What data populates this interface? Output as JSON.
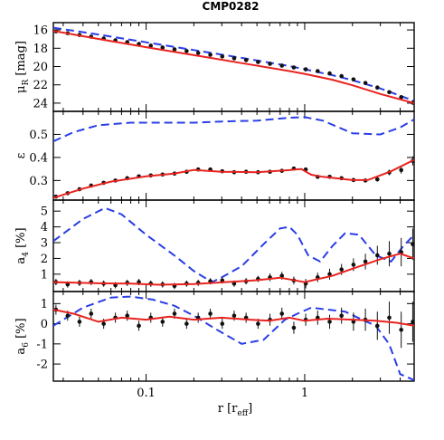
{
  "chart_data": {
    "type": "line",
    "title": "CMP0282",
    "xlabel": {
      "main": "r [r",
      "sub": "eff",
      "close": "]"
    },
    "x_scale": "log",
    "xlim": [
      0.026,
      4.9
    ],
    "x_ticks": [
      {
        "v": 0.1,
        "label": "0.1"
      },
      {
        "v": 1,
        "label": "1"
      }
    ],
    "colors": {
      "model": "#e8231f",
      "other": "#2a3ee6",
      "points": "#111111"
    },
    "panels": [
      {
        "id": "mu",
        "ylabel": {
          "main": "μ",
          "sub": "R",
          "rest": " [mag]"
        },
        "ylim": [
          24.9,
          15.2
        ],
        "ticks": [
          {
            "v": 16,
            "label": "16"
          },
          {
            "v": 18,
            "label": "18"
          },
          {
            "v": 20,
            "label": "20"
          },
          {
            "v": 22,
            "label": "22"
          },
          {
            "v": 24,
            "label": "24"
          }
        ],
        "data_x": [
          0.027,
          0.032,
          0.038,
          0.045,
          0.054,
          0.064,
          0.076,
          0.09,
          0.107,
          0.127,
          0.151,
          0.18,
          0.213,
          0.254,
          0.302,
          0.359,
          0.427,
          0.508,
          0.604,
          0.718,
          0.854,
          1.015,
          1.207,
          1.436,
          1.707,
          2.03,
          2.414,
          2.871,
          3.414,
          4.06,
          4.8
        ],
        "data_y": [
          16.15,
          16.35,
          16.55,
          16.74,
          16.94,
          17.13,
          17.33,
          17.53,
          17.72,
          17.92,
          18.12,
          18.31,
          18.51,
          18.71,
          18.9,
          19.1,
          19.3,
          19.5,
          19.7,
          19.9,
          20.1,
          20.3,
          20.5,
          20.75,
          21.05,
          21.4,
          21.8,
          22.3,
          22.8,
          23.35,
          23.95
        ],
        "errors": [],
        "model_x": [
          0.026,
          0.05,
          0.1,
          0.2,
          0.4,
          0.8,
          1.0,
          1.5,
          2.0,
          3.0,
          4.9
        ],
        "model_y": [
          16.1,
          16.98,
          17.88,
          18.75,
          19.62,
          20.5,
          20.8,
          21.45,
          22.05,
          23.0,
          24.0
        ],
        "other_x": [
          0.026,
          0.05,
          0.1,
          0.2,
          0.4,
          0.8,
          1.0,
          1.5,
          2.0,
          3.0,
          4.9
        ],
        "other_y": [
          15.75,
          16.5,
          17.35,
          18.2,
          19.05,
          19.95,
          20.3,
          20.95,
          21.5,
          22.4,
          23.75
        ]
      },
      {
        "id": "eps",
        "ylabel": {
          "main": "ε",
          "sub": "",
          "rest": ""
        },
        "ylim": [
          0.215,
          0.6
        ],
        "ticks": [
          {
            "v": 0.3,
            "label": "0.3"
          },
          {
            "v": 0.4,
            "label": "0.4"
          },
          {
            "v": 0.5,
            "label": "0.5"
          }
        ],
        "data_x": [
          0.027,
          0.032,
          0.038,
          0.045,
          0.054,
          0.064,
          0.076,
          0.09,
          0.107,
          0.127,
          0.151,
          0.18,
          0.213,
          0.254,
          0.302,
          0.359,
          0.427,
          0.508,
          0.604,
          0.718,
          0.854,
          1.015,
          1.207,
          1.436,
          1.707,
          2.03,
          2.414,
          2.871,
          3.414,
          4.06,
          4.8
        ],
        "data_y": [
          0.23,
          0.245,
          0.262,
          0.278,
          0.29,
          0.3,
          0.31,
          0.318,
          0.322,
          0.326,
          0.33,
          0.338,
          0.348,
          0.348,
          0.34,
          0.336,
          0.338,
          0.336,
          0.338,
          0.342,
          0.352,
          0.348,
          0.316,
          0.316,
          0.31,
          0.302,
          0.3,
          0.305,
          0.335,
          0.345,
          0.385
        ],
        "errors": [
          0.006,
          0.005,
          0.005,
          0.005,
          0.005,
          0.005,
          0.005,
          0.005,
          0.005,
          0.005,
          0.005,
          0.005,
          0.005,
          0.005,
          0.005,
          0.005,
          0.005,
          0.005,
          0.005,
          0.005,
          0.006,
          0.006,
          0.006,
          0.006,
          0.006,
          0.007,
          0.008,
          0.01,
          0.012,
          0.015,
          0.02
        ],
        "model_x": [
          0.026,
          0.04,
          0.06,
          0.1,
          0.15,
          0.2,
          0.3,
          0.5,
          0.8,
          0.95,
          1.1,
          1.3,
          2.0,
          2.5,
          3.5,
          4.9
        ],
        "model_y": [
          0.225,
          0.265,
          0.295,
          0.318,
          0.33,
          0.346,
          0.338,
          0.336,
          0.345,
          0.35,
          0.325,
          0.316,
          0.302,
          0.302,
          0.34,
          0.39
        ],
        "other_x": [
          0.026,
          0.035,
          0.05,
          0.08,
          0.12,
          0.2,
          0.3,
          0.5,
          0.8,
          1.0,
          1.3,
          2.0,
          3.0,
          4.0,
          4.9
        ],
        "other_y": [
          0.47,
          0.51,
          0.54,
          0.551,
          0.551,
          0.551,
          0.556,
          0.56,
          0.572,
          0.575,
          0.56,
          0.505,
          0.5,
          0.53,
          0.565
        ]
      },
      {
        "id": "a4",
        "ylabel": {
          "main": "a",
          "sub": "4",
          "rest": " [%]"
        },
        "ylim": [
          -0.1,
          5.7
        ],
        "ticks": [
          {
            "v": 1,
            "label": "1"
          },
          {
            "v": 2,
            "label": "2"
          },
          {
            "v": 3,
            "label": "3"
          },
          {
            "v": 4,
            "label": "4"
          },
          {
            "v": 5,
            "label": "5"
          }
        ],
        "data_x": [
          0.027,
          0.032,
          0.038,
          0.045,
          0.054,
          0.064,
          0.076,
          0.09,
          0.107,
          0.127,
          0.151,
          0.18,
          0.213,
          0.254,
          0.302,
          0.359,
          0.427,
          0.508,
          0.604,
          0.718,
          0.854,
          1.015,
          1.207,
          1.436,
          1.707,
          2.03,
          2.414,
          2.871,
          3.414,
          4.06,
          4.8
        ],
        "data_y": [
          0.5,
          0.35,
          0.45,
          0.5,
          0.4,
          0.3,
          0.45,
          0.5,
          0.4,
          0.35,
          0.25,
          0.4,
          0.45,
          0.55,
          0.6,
          0.4,
          0.55,
          0.7,
          0.8,
          0.9,
          0.6,
          0.4,
          0.8,
          1.0,
          1.3,
          1.6,
          1.8,
          2.2,
          2.3,
          2.4,
          2.9
        ],
        "errors": [
          0.2,
          0.2,
          0.2,
          0.2,
          0.2,
          0.2,
          0.2,
          0.2,
          0.2,
          0.2,
          0.2,
          0.2,
          0.2,
          0.2,
          0.2,
          0.2,
          0.2,
          0.2,
          0.25,
          0.25,
          0.25,
          0.3,
          0.3,
          0.35,
          0.35,
          0.4,
          0.5,
          0.6,
          0.8,
          0.9,
          1.0
        ],
        "model_x": [
          0.026,
          0.05,
          0.08,
          0.12,
          0.2,
          0.3,
          0.5,
          0.7,
          0.9,
          1.0,
          1.5,
          2.0,
          3.0,
          4.0,
          4.9
        ],
        "model_y": [
          0.5,
          0.42,
          0.4,
          0.33,
          0.37,
          0.48,
          0.62,
          0.78,
          0.58,
          0.5,
          0.9,
          1.35,
          1.95,
          2.3,
          2.0
        ],
        "other_x": [
          0.026,
          0.04,
          0.055,
          0.07,
          0.1,
          0.15,
          0.2,
          0.26,
          0.3,
          0.4,
          0.55,
          0.7,
          0.8,
          0.9,
          1.05,
          1.25,
          1.5,
          1.8,
          2.2,
          2.8,
          3.5,
          4.2,
          4.9
        ],
        "other_y": [
          3.1,
          4.5,
          5.2,
          4.8,
          3.5,
          2.2,
          1.2,
          0.5,
          0.8,
          1.5,
          2.9,
          3.9,
          4.0,
          3.5,
          2.2,
          1.8,
          2.8,
          3.6,
          3.5,
          2.2,
          1.8,
          2.8,
          3.5
        ]
      },
      {
        "id": "a6",
        "ylabel": {
          "main": "a",
          "sub": "6",
          "rest": " [%]"
        },
        "ylim": [
          -2.85,
          1.6
        ],
        "ticks": [
          {
            "v": -2,
            "label": "-2"
          },
          {
            "v": -1,
            "label": "-1"
          },
          {
            "v": 0,
            "label": "0"
          },
          {
            "v": 1,
            "label": "1"
          }
        ],
        "data_x": [
          0.027,
          0.032,
          0.038,
          0.045,
          0.054,
          0.064,
          0.076,
          0.09,
          0.107,
          0.127,
          0.151,
          0.18,
          0.213,
          0.254,
          0.302,
          0.359,
          0.427,
          0.508,
          0.604,
          0.718,
          0.854,
          1.015,
          1.207,
          1.436,
          1.707,
          2.03,
          2.414,
          2.871,
          3.414,
          4.06,
          4.8
        ],
        "data_y": [
          0.7,
          0.4,
          0.1,
          0.5,
          0.0,
          0.3,
          0.4,
          -0.1,
          0.3,
          0.1,
          0.5,
          0.0,
          0.3,
          0.5,
          0.0,
          0.4,
          0.3,
          0.0,
          0.2,
          0.5,
          -0.2,
          0.2,
          0.3,
          0.1,
          0.4,
          0.1,
          0.2,
          -0.1,
          0.3,
          -0.3,
          0.1
        ],
        "errors": [
          0.25,
          0.25,
          0.25,
          0.25,
          0.25,
          0.25,
          0.25,
          0.25,
          0.25,
          0.25,
          0.25,
          0.25,
          0.25,
          0.25,
          0.25,
          0.25,
          0.25,
          0.25,
          0.3,
          0.3,
          0.3,
          0.3,
          0.35,
          0.35,
          0.4,
          0.45,
          0.55,
          0.7,
          0.8,
          0.9,
          1.0
        ],
        "model_x": [
          0.026,
          0.035,
          0.05,
          0.07,
          0.1,
          0.14,
          0.2,
          0.3,
          0.45,
          0.6,
          0.8,
          1.0,
          1.4,
          2.0,
          2.8,
          3.8,
          4.9
        ],
        "model_y": [
          0.7,
          0.5,
          0.1,
          0.3,
          0.2,
          0.35,
          0.2,
          0.3,
          0.2,
          0.15,
          0.3,
          0.15,
          0.25,
          0.2,
          0.15,
          0.05,
          -0.1
        ],
        "other_x": [
          0.026,
          0.04,
          0.06,
          0.08,
          0.11,
          0.15,
          0.2,
          0.28,
          0.4,
          0.55,
          0.75,
          0.9,
          1.1,
          1.4,
          1.8,
          2.3,
          2.8,
          3.4,
          4.0,
          4.9
        ],
        "other_y": [
          -0.1,
          0.8,
          1.3,
          1.35,
          1.2,
          0.9,
          0.4,
          -0.3,
          -1.0,
          -0.8,
          0.2,
          0.5,
          0.8,
          0.7,
          0.6,
          0.2,
          -0.1,
          -1.0,
          -2.5,
          -2.8
        ]
      }
    ]
  }
}
